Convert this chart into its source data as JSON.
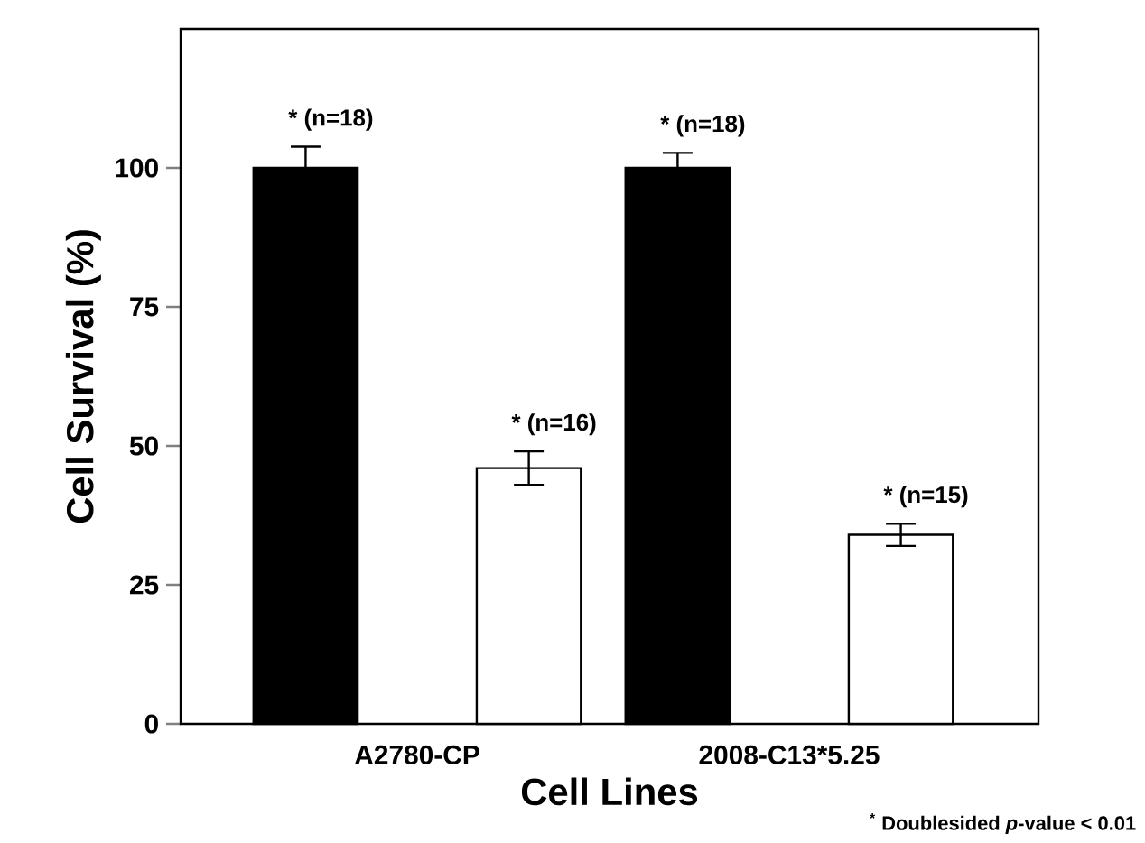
{
  "chart_data": {
    "type": "bar",
    "categories": [
      "A2780-CP",
      "2008-C13*5.25"
    ],
    "series": [
      {
        "color": "#000000",
        "values": [
          100,
          100
        ],
        "errors": [
          3.8,
          2.7
        ]
      },
      {
        "color": "#ffffff",
        "values": [
          46,
          34
        ],
        "errors": [
          3,
          2
        ]
      }
    ],
    "ylim": [
      0,
      125
    ],
    "yticks": [
      0,
      25,
      50,
      75,
      100
    ],
    "xlabel": "Cell Lines",
    "ylabel": "Cell Survival (%)",
    "annotations": [
      "* (n=18)",
      "* (n=16)",
      "* (n=18)",
      "* (n=15)",
      "$^{*}$ Doublesided *p*-value < 0.01"
    ]
  }
}
